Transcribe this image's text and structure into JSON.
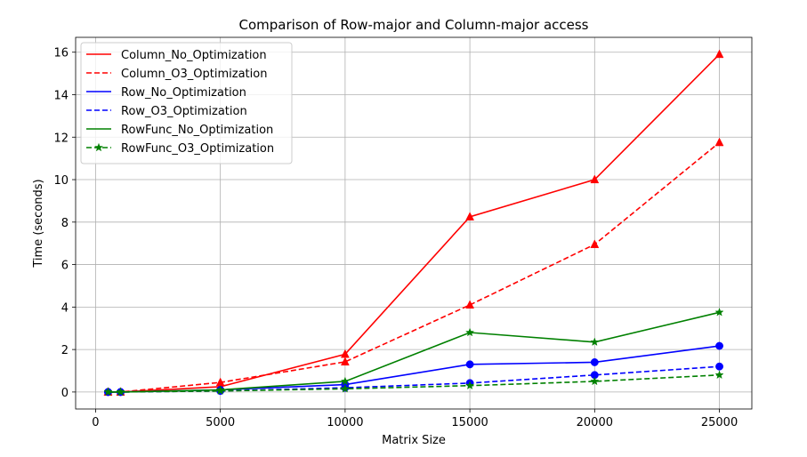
{
  "chart_data": {
    "type": "line",
    "title": "Comparison of Row-major and Column-major access",
    "xlabel": "Matrix Size",
    "ylabel": "Time (seconds)",
    "x": [
      500,
      1000,
      5000,
      10000,
      15000,
      20000,
      25000
    ],
    "xlim": [
      -800,
      26300
    ],
    "ylim": [
      -0.8,
      16.7
    ],
    "xticks": [
      0,
      5000,
      10000,
      15000,
      20000,
      25000
    ],
    "yticks": [
      0,
      2,
      4,
      6,
      8,
      10,
      12,
      14,
      16
    ],
    "grid": true,
    "legend_position": "top-left",
    "series": [
      {
        "name": "Column_No_Optimization",
        "color": "#ff0000",
        "dash": "solid",
        "marker": "triangle",
        "values": [
          0.0,
          0.0,
          0.25,
          1.78,
          8.25,
          10.0,
          15.9
        ]
      },
      {
        "name": "Column_O3_Optimization",
        "color": "#ff0000",
        "dash": "dashed",
        "marker": "triangle",
        "values": [
          0.0,
          0.0,
          0.45,
          1.42,
          4.1,
          6.95,
          11.75
        ]
      },
      {
        "name": "Row_No_Optimization",
        "color": "#0000ff",
        "dash": "solid",
        "marker": "circle",
        "values": [
          0.0,
          0.0,
          0.1,
          0.35,
          1.3,
          1.4,
          2.17
        ]
      },
      {
        "name": "Row_O3_Optimization",
        "color": "#0000ff",
        "dash": "dashed",
        "marker": "circle",
        "values": [
          0.0,
          0.0,
          0.05,
          0.2,
          0.42,
          0.8,
          1.2
        ]
      },
      {
        "name": "RowFunc_No_Optimization",
        "color": "#008000",
        "dash": "solid",
        "marker": "star",
        "values": [
          0.0,
          0.0,
          0.1,
          0.5,
          2.8,
          2.35,
          3.75
        ]
      },
      {
        "name": "RowFunc_O3_Optimization",
        "color": "#008000",
        "dash": "dashed",
        "marker": "star",
        "values": [
          0.0,
          0.0,
          0.05,
          0.15,
          0.3,
          0.5,
          0.8
        ]
      }
    ]
  }
}
